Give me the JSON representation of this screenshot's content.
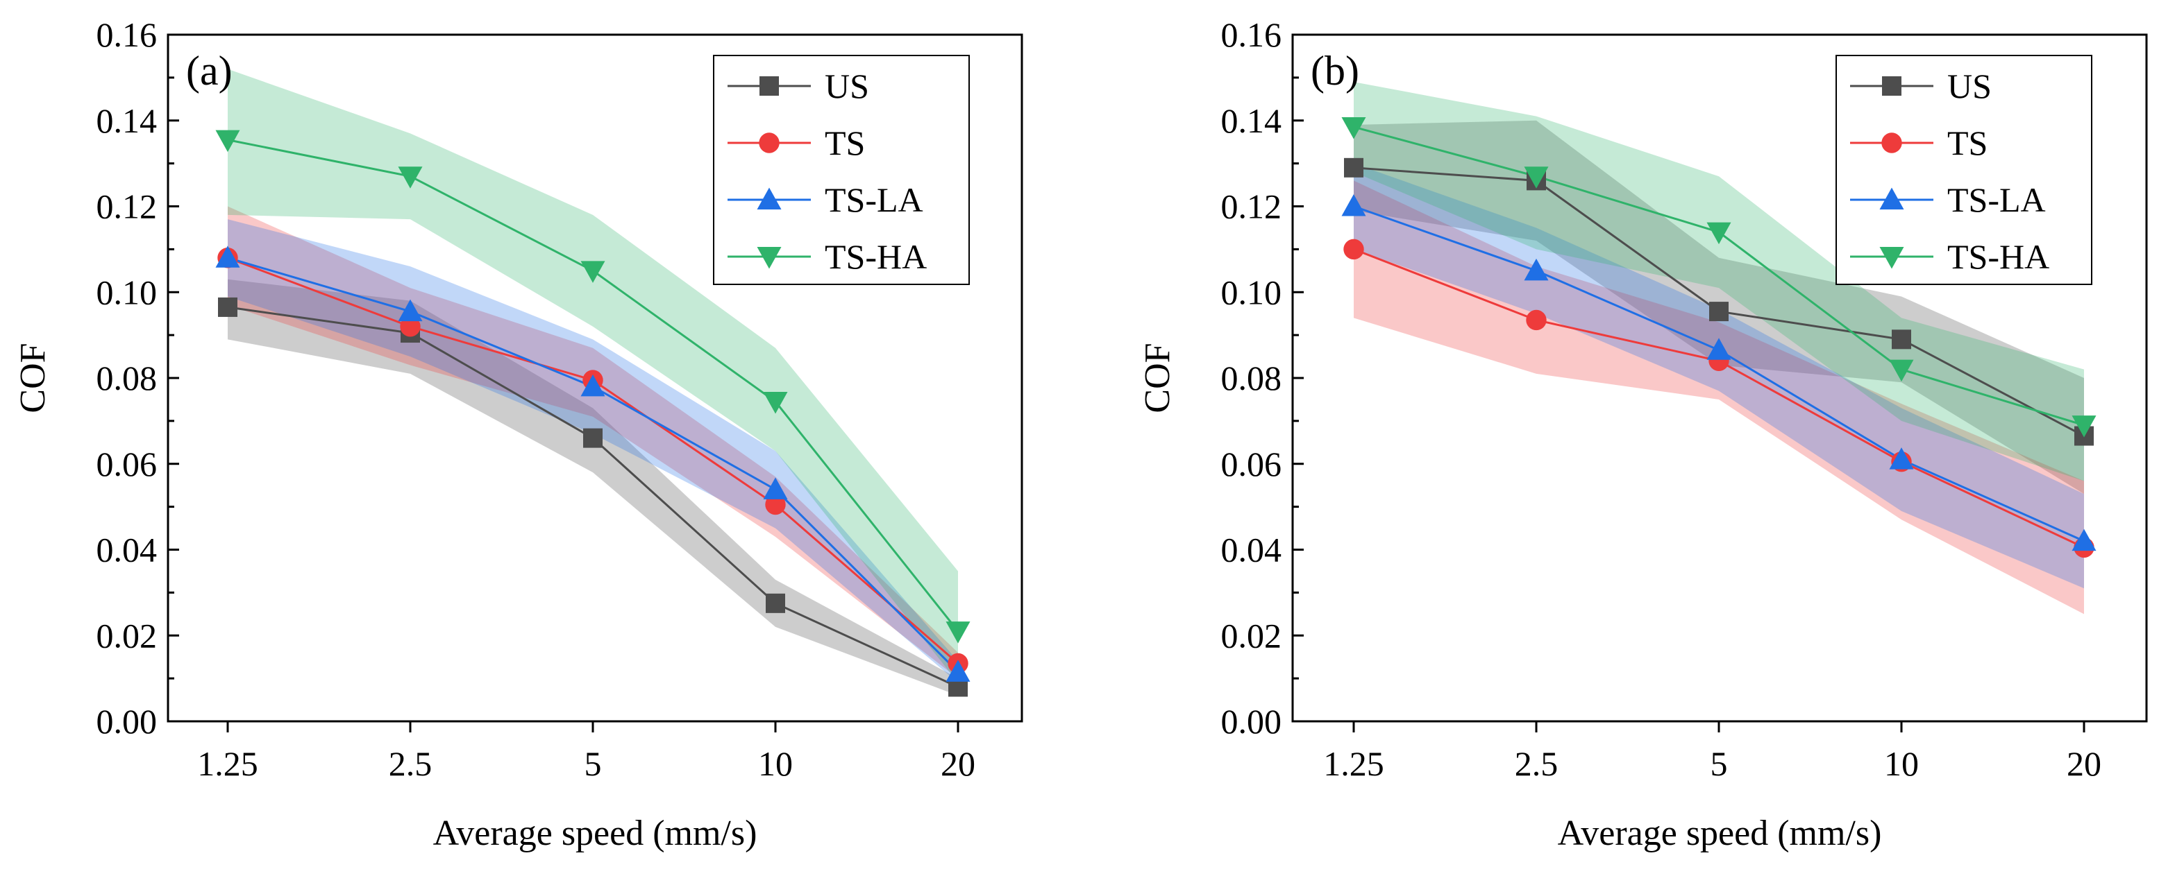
{
  "colors": {
    "US": "#4d4d4d",
    "TS": "#ee3b3b",
    "TS-LA": "#1f6fe5",
    "TS-HA": "#2fb36a"
  },
  "chart_data": [
    {
      "type": "line",
      "panel_label": "(a)",
      "title": "",
      "xlabel": "Average speed (mm/s)",
      "ylabel": "COF",
      "categories": [
        "1.25",
        "2.5",
        "5",
        "10",
        "20"
      ],
      "ylim": [
        0,
        0.16
      ],
      "yticks": [
        "0.00",
        "0.02",
        "0.04",
        "0.06",
        "0.08",
        "0.10",
        "0.12",
        "0.14",
        "0.16"
      ],
      "legend": [
        "US",
        "TS",
        "TS-LA",
        "TS-HA"
      ],
      "legend_position": "top-right",
      "series": [
        {
          "name": "US",
          "marker": "square",
          "values": [
            0.0965,
            0.0905,
            0.066,
            0.0275,
            0.008
          ],
          "lower": [
            0.089,
            0.081,
            0.058,
            0.022,
            0.006
          ],
          "upper": [
            0.103,
            0.098,
            0.073,
            0.033,
            0.01
          ]
        },
        {
          "name": "TS",
          "marker": "circle",
          "values": [
            0.108,
            0.092,
            0.0795,
            0.0505,
            0.0135
          ],
          "lower": [
            0.097,
            0.083,
            0.071,
            0.043,
            0.01
          ],
          "upper": [
            0.12,
            0.101,
            0.087,
            0.057,
            0.016
          ]
        },
        {
          "name": "TS-LA",
          "marker": "triangle-up",
          "values": [
            0.108,
            0.0955,
            0.078,
            0.054,
            0.0115
          ],
          "lower": [
            0.099,
            0.085,
            0.067,
            0.045,
            0.009
          ],
          "upper": [
            0.117,
            0.106,
            0.089,
            0.063,
            0.014
          ]
        },
        {
          "name": "TS-HA",
          "marker": "triangle-down",
          "values": [
            0.1355,
            0.127,
            0.105,
            0.0745,
            0.021
          ],
          "lower": [
            0.118,
            0.117,
            0.092,
            0.063,
            0.009
          ],
          "upper": [
            0.152,
            0.137,
            0.118,
            0.087,
            0.035
          ]
        }
      ]
    },
    {
      "type": "line",
      "panel_label": "(b)",
      "title": "",
      "xlabel": "Average speed (mm/s)",
      "ylabel": "COF",
      "categories": [
        "1.25",
        "2.5",
        "5",
        "10",
        "20"
      ],
      "ylim": [
        0,
        0.16
      ],
      "yticks": [
        "0.00",
        "0.02",
        "0.04",
        "0.06",
        "0.08",
        "0.10",
        "0.12",
        "0.14",
        "0.16"
      ],
      "legend": [
        "US",
        "TS",
        "TS-LA",
        "TS-HA"
      ],
      "legend_position": "top-right",
      "series": [
        {
          "name": "US",
          "marker": "square",
          "values": [
            0.129,
            0.126,
            0.0955,
            0.089,
            0.0665
          ],
          "lower": [
            0.119,
            0.112,
            0.083,
            0.079,
            0.053
          ],
          "upper": [
            0.139,
            0.14,
            0.108,
            0.099,
            0.08
          ]
        },
        {
          "name": "TS",
          "marker": "circle",
          "values": [
            0.11,
            0.0935,
            0.084,
            0.0605,
            0.0405
          ],
          "lower": [
            0.094,
            0.081,
            0.075,
            0.047,
            0.025
          ],
          "upper": [
            0.126,
            0.106,
            0.093,
            0.074,
            0.056
          ]
        },
        {
          "name": "TS-LA",
          "marker": "triangle-up",
          "values": [
            0.12,
            0.105,
            0.0865,
            0.061,
            0.042
          ],
          "lower": [
            0.11,
            0.095,
            0.077,
            0.049,
            0.031
          ],
          "upper": [
            0.13,
            0.115,
            0.096,
            0.073,
            0.053
          ]
        },
        {
          "name": "TS-HA",
          "marker": "triangle-down",
          "values": [
            0.1385,
            0.127,
            0.114,
            0.082,
            0.069
          ],
          "lower": [
            0.128,
            0.11,
            0.101,
            0.07,
            0.056
          ],
          "upper": [
            0.149,
            0.141,
            0.127,
            0.094,
            0.082
          ]
        }
      ]
    }
  ]
}
